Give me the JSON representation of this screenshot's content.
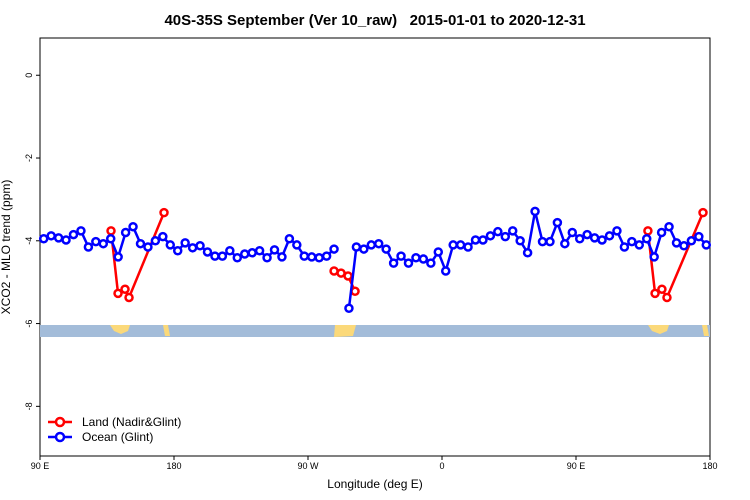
{
  "chart_data": {
    "type": "line",
    "title": "40S-35S September (Ver 10_raw)   2015-01-01 to 2020-12-31",
    "xlabel": "Longitude (deg E)",
    "ylabel": "XCO2 - MLO trend (ppm)",
    "xlim": [
      90,
      540
    ],
    "ylim": [
      -9.2,
      0.9
    ],
    "xticks": [
      {
        "value": 90,
        "label": "90 E"
      },
      {
        "value": 180,
        "label": "180"
      },
      {
        "value": 270,
        "label": "90 W"
      },
      {
        "value": 360,
        "label": "0"
      },
      {
        "value": 450,
        "label": "90 E"
      },
      {
        "value": 540,
        "label": "180"
      }
    ],
    "yticks": [
      0,
      -2,
      -4,
      -6,
      -8
    ],
    "legend": "bottom-left",
    "series": [
      {
        "name": "Land (Nadir&Glint)",
        "color": "#ff0000",
        "x": [
          137.7,
          142.4,
          147.1,
          149.8,
          173.3,
          null,
          287.5,
          292.2,
          296.9,
          301.6,
          null,
          498.3,
          503.1,
          507.7,
          511.1,
          535.3
        ],
        "values": [
          -3.76,
          -5.27,
          -5.17,
          -5.37,
          -3.32,
          null,
          -4.73,
          -4.78,
          -4.85,
          -5.22,
          null,
          -3.76,
          -5.27,
          -5.17,
          -5.37,
          -3.32
        ]
      },
      {
        "name": "Ocean (Glint)",
        "color": "#0000ff",
        "x": [
          92.5,
          97.5,
          102.5,
          107.5,
          112.5,
          117.5,
          122.5,
          127.5,
          132.5,
          137.5,
          142.5,
          147.5,
          152.5,
          157.5,
          162.5,
          167.5,
          172.5,
          177.5,
          182.5,
          187.5,
          192.5,
          197.5,
          202.5,
          207.5,
          212.5,
          217.5,
          222.5,
          227.5,
          232.5,
          237.5,
          242.5,
          247.5,
          252.5,
          257.5,
          262.5,
          267.5,
          272.5,
          277.5,
          282.5,
          287.5,
          null,
          297.5,
          302.5,
          307.5,
          312.5,
          317.5,
          322.5,
          327.5,
          332.5,
          337.5,
          342.5,
          347.5,
          352.5,
          357.5,
          362.5,
          367.5,
          372.5,
          377.5,
          382.5,
          387.5,
          392.5,
          397.5,
          402.5,
          407.5,
          412.5,
          417.5,
          422.5,
          427.5,
          432.5,
          437.5,
          442.5,
          447.5,
          452.5,
          457.5,
          462.5,
          467.5,
          472.5,
          477.5,
          482.5,
          487.5,
          492.5,
          497.5,
          502.5,
          507.5,
          512.5,
          517.5,
          522.5,
          527.5,
          532.5,
          537.5
        ],
        "values": [
          -3.95,
          -3.88,
          -3.93,
          -3.98,
          -3.85,
          -3.76,
          -4.15,
          -4.02,
          -4.07,
          -3.95,
          -4.39,
          -3.8,
          -3.66,
          -4.07,
          -4.15,
          -4.0,
          -3.9,
          -4.1,
          -4.24,
          -4.05,
          -4.17,
          -4.12,
          -4.27,
          -4.37,
          -4.37,
          -4.24,
          -4.41,
          -4.32,
          -4.29,
          -4.24,
          -4.41,
          -4.22,
          -4.39,
          -3.95,
          -4.1,
          -4.37,
          -4.39,
          -4.41,
          -4.37,
          -4.2,
          null,
          -5.63,
          -4.15,
          -4.2,
          -4.1,
          -4.07,
          -4.2,
          -4.54,
          -4.37,
          -4.54,
          -4.41,
          -4.44,
          -4.54,
          -4.27,
          -4.73,
          -4.1,
          -4.1,
          -4.15,
          -3.98,
          -3.98,
          -3.88,
          -3.78,
          -3.9,
          -3.76,
          -4.0,
          -4.29,
          -3.29,
          -4.02,
          -4.02,
          -3.56,
          -4.07,
          -3.8,
          -3.95,
          -3.85,
          -3.93,
          -3.98,
          -3.88,
          -3.76,
          -4.15,
          -4.02,
          -4.1,
          -3.95,
          -4.39,
          -3.8,
          -3.66,
          -4.05,
          -4.12,
          -4.0,
          -3.9,
          -4.1
        ]
      }
    ]
  }
}
